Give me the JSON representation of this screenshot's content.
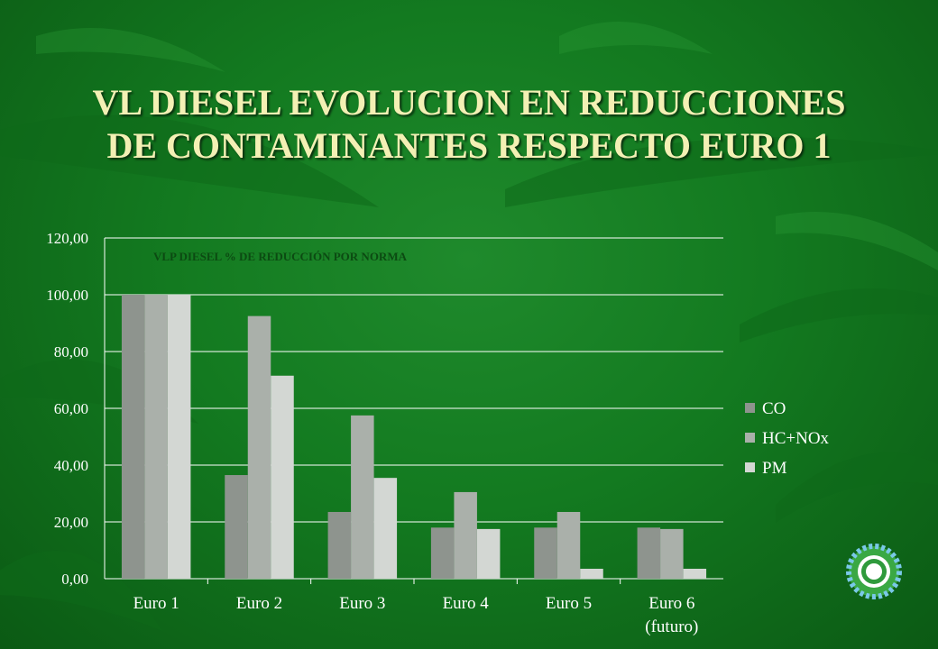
{
  "slide": {
    "title_line1": "VL DIESEL EVOLUCION EN REDUCCIONES",
    "title_line2": "DE CONTAMINANTES RESPECTO EURO 1"
  },
  "colors": {
    "CO": "#8e948e",
    "HC+NOx": "#aab0aa",
    "PM": "#d3d7d3",
    "title": "#f3f0b4"
  },
  "chart_data": {
    "type": "bar",
    "title": "VLP DIESEL % DE REDUCCIÓN POR NORMA",
    "categories": [
      "Euro 1",
      "Euro 2",
      "Euro 3",
      "Euro 4",
      "Euro 5",
      "Euro 6 (futuro)"
    ],
    "category_lines": [
      [
        "Euro 1"
      ],
      [
        "Euro 2"
      ],
      [
        "Euro 3"
      ],
      [
        "Euro 4"
      ],
      [
        "Euro 5"
      ],
      [
        "Euro 6",
        "(futuro)"
      ]
    ],
    "series": [
      {
        "name": "CO",
        "values": [
          100.0,
          36.5,
          23.5,
          18.0,
          18.0,
          18.0
        ]
      },
      {
        "name": "HC+NOx",
        "values": [
          100.0,
          92.5,
          57.5,
          30.5,
          23.5,
          17.5
        ]
      },
      {
        "name": "PM",
        "values": [
          100.0,
          71.5,
          35.5,
          17.5,
          3.5,
          3.5
        ]
      }
    ],
    "y_ticks": [
      "0,00",
      "20,00",
      "40,00",
      "60,00",
      "80,00",
      "100,00",
      "120,00"
    ],
    "ylim": [
      0,
      120
    ],
    "grid": true,
    "legend_position": "right"
  }
}
